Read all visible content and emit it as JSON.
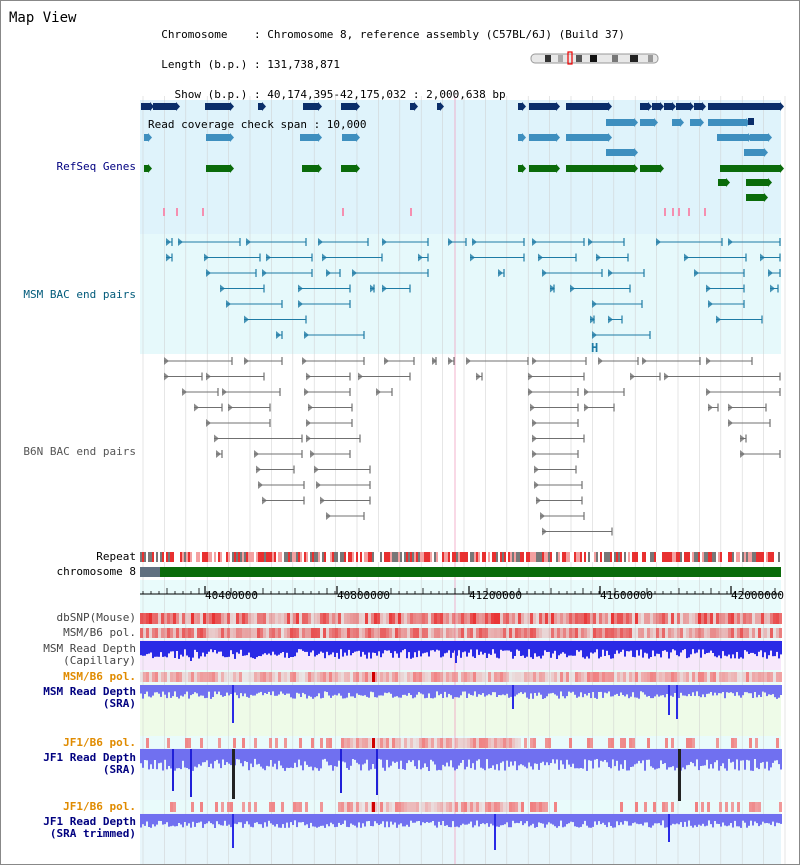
{
  "header": {
    "title": "Map View",
    "info_lines": [
      "  Chromosome    : Chromosome 8, reference assembly (C57BL/6J) (Build 37)",
      "  Length (b.p.) : 131,738,871",
      "    Show (b.p.) : 40,174,395-42,175,032 : 2,000,638 bp",
      "Read coverage check span : 10,000"
    ]
  },
  "tracks": {
    "refseq": "RefSeq Genes",
    "msm_bac": "MSM BAC end pairs",
    "b6n_bac": "B6N BAC end pairs",
    "repeat": "Repeat",
    "chromosome": "chromosome 8",
    "dbsnp": "dbSNP(Mouse)",
    "msm_b6_pol": "MSM/B6 pol.",
    "msm_depth_cap_1": "MSM Read Depth",
    "msm_depth_cap_2": "(Capillary)",
    "msm_b6_pol_2": "MSM/B6 pol.",
    "msm_depth_sra_1": "MSM Read Depth",
    "msm_depth_sra_2": "(SRA)",
    "jf1_b6_pol": "JF1/B6 pol.",
    "jf1_depth_sra_1": "JF1 Read Depth",
    "jf1_depth_sra_2": "(SRA)",
    "jf1_b6_pol_2": "JF1/B6 pol.",
    "jf1_depth_trim_1": "JF1 Read Depth",
    "jf1_depth_trim_2": "(SRA trimmed)"
  },
  "axis": {
    "ticks": [
      "40400000",
      "40800000",
      "41200000",
      "41600000",
      "42000000"
    ]
  },
  "marker_label": "H",
  "colors": {
    "refseq_dark": "#0a2e6a",
    "refseq_mid": "#3e8fbf",
    "refseq_green": "#0a6b0a",
    "msm_bac": "#1e7ba5",
    "b6n_bac": "#707070",
    "label_navy": "#000080",
    "label_teal": "#005a7a",
    "label_orange": "#e08b00",
    "repeat_red": "#e83030",
    "depth_blue": "#2a2ae6",
    "depth_light": "#7070f0"
  }
}
